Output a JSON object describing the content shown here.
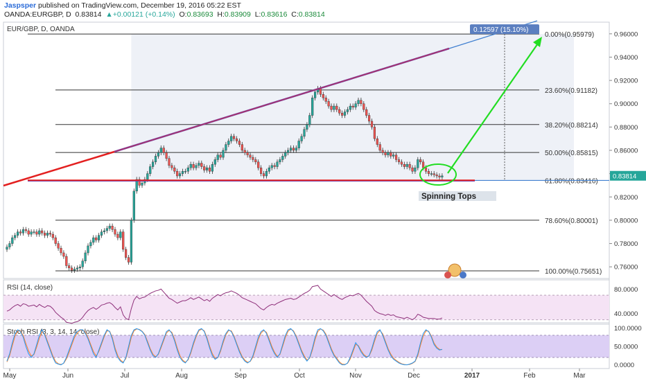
{
  "header": {
    "author": "Jaspsper",
    "published": "published on TradingView.com, December 19, 2016 05:22 EST",
    "symbol": "OANDA:EURGBP, D",
    "last": "0.83814",
    "change": "+0.00121 (+0.14%)",
    "open_label": "O:",
    "open": "0.83693",
    "high_label": "H:",
    "high": "0.83909",
    "low_label": "L:",
    "low": "0.83616",
    "close_label": "C:",
    "close": "0.83814"
  },
  "colors": {
    "up_candle": "#26a69a",
    "down_candle": "#ef5350",
    "wedge_line": "#7b3fa0",
    "red_line": "#e32020",
    "blue_line": "#3f7fd0",
    "green_arrow": "#22dd22",
    "rsi_line": "#8e2f7a",
    "stoch_k": "#2196f3",
    "stoch_d": "#ff7f27"
  },
  "chart_data": [
    {
      "type": "candlestick",
      "title": "EUR/GBP, D, OANDA",
      "ylim": [
        0.75,
        0.97
      ],
      "yticks": [
        "0.96000",
        "0.94000",
        "0.92000",
        "0.90000",
        "0.88000",
        "0.86000",
        "0.84000",
        "0.82000",
        "0.80000",
        "0.78000",
        "0.76000"
      ],
      "xticks": [
        "May",
        "Jun",
        "Jul",
        "Aug",
        "Sep",
        "Oct",
        "Nov",
        "Dec",
        "2017",
        "Feb",
        "Mar"
      ],
      "last_price_label": "0.83814",
      "fib_levels": [
        {
          "label": "0.00%(0.95979)",
          "value": 0.95979
        },
        {
          "label": "23.60%(0.91182)",
          "value": 0.91182
        },
        {
          "label": "38.20%(0.88214)",
          "value": 0.88214
        },
        {
          "label": "50.00%(0.85815)",
          "value": 0.85815
        },
        {
          "label": "61.80%(0.83416)",
          "value": 0.83416
        },
        {
          "label": "78.60%(0.80001)",
          "value": 0.80001
        },
        {
          "label": "100.00%(0.75651)",
          "value": 0.75651
        }
      ],
      "measure_label": "0.12597 (15.10%)",
      "annotation": "Spinning Tops",
      "closes": [
        0.777,
        0.78,
        0.785,
        0.787,
        0.79,
        0.789,
        0.792,
        0.791,
        0.788,
        0.79,
        0.79,
        0.788,
        0.791,
        0.789,
        0.787,
        0.789,
        0.788,
        0.785,
        0.78,
        0.776,
        0.772,
        0.769,
        0.761,
        0.759,
        0.757,
        0.758,
        0.759,
        0.76,
        0.765,
        0.772,
        0.778,
        0.781,
        0.785,
        0.783,
        0.787,
        0.79,
        0.791,
        0.793,
        0.795,
        0.792,
        0.788,
        0.785,
        0.79,
        0.775,
        0.768,
        0.764,
        0.8,
        0.825,
        0.835,
        0.83,
        0.832,
        0.835,
        0.84,
        0.846,
        0.85,
        0.855,
        0.858,
        0.862,
        0.858,
        0.853,
        0.847,
        0.845,
        0.842,
        0.838,
        0.84,
        0.842,
        0.842,
        0.845,
        0.848,
        0.845,
        0.847,
        0.849,
        0.846,
        0.843,
        0.845,
        0.842,
        0.848,
        0.852,
        0.856,
        0.854,
        0.86,
        0.865,
        0.868,
        0.872,
        0.87,
        0.868,
        0.865,
        0.86,
        0.858,
        0.856,
        0.854,
        0.852,
        0.85,
        0.845,
        0.84,
        0.838,
        0.842,
        0.845,
        0.847,
        0.846,
        0.85,
        0.852,
        0.855,
        0.858,
        0.86,
        0.862,
        0.86,
        0.862,
        0.868,
        0.872,
        0.878,
        0.882,
        0.89,
        0.905,
        0.91,
        0.913,
        0.908,
        0.905,
        0.902,
        0.898,
        0.895,
        0.898,
        0.895,
        0.892,
        0.89,
        0.893,
        0.895,
        0.898,
        0.897,
        0.9,
        0.903,
        0.9,
        0.895,
        0.89,
        0.885,
        0.88,
        0.87,
        0.865,
        0.86,
        0.858,
        0.856,
        0.858,
        0.855,
        0.856,
        0.852,
        0.85,
        0.848,
        0.846,
        0.848,
        0.845,
        0.842,
        0.845,
        0.852,
        0.85,
        0.845,
        0.842,
        0.84,
        0.84,
        0.839,
        0.838,
        0.837,
        0.8381
      ],
      "rsi": {
        "title": "RSI (14, close)",
        "ylim": [
          25,
          95
        ],
        "ticks": [
          "80.0000",
          "40.0000"
        ],
        "levels": [
          70,
          30
        ],
        "values": [
          44,
          46,
          50,
          53,
          55,
          52,
          56,
          55,
          52,
          53,
          54,
          51,
          55,
          52,
          50,
          53,
          52,
          48,
          42,
          38,
          34,
          31,
          26,
          25,
          24,
          26,
          27,
          29,
          34,
          40,
          45,
          48,
          50,
          47,
          50,
          54,
          55,
          57,
          58,
          55,
          50,
          46,
          51,
          38,
          32,
          30,
          48,
          62,
          68,
          64,
          66,
          67,
          70,
          73,
          75,
          77,
          78,
          80,
          75,
          70,
          65,
          63,
          60,
          57,
          59,
          61,
          61,
          63,
          66,
          63,
          65,
          67,
          64,
          61,
          63,
          60,
          65,
          68,
          71,
          69,
          72,
          74,
          75,
          77,
          75,
          73,
          70,
          66,
          64,
          62,
          60,
          58,
          56,
          52,
          48,
          46,
          50,
          53,
          55,
          54,
          57,
          59,
          61,
          63,
          64,
          65,
          63,
          64,
          67,
          70,
          73,
          75,
          78,
          84,
          85,
          86,
          80,
          77,
          74,
          71,
          68,
          71,
          68,
          65,
          63,
          66,
          68,
          70,
          69,
          71,
          73,
          70,
          65,
          60,
          56,
          52,
          45,
          42,
          40,
          39,
          37,
          39,
          37,
          38,
          35,
          34,
          33,
          32,
          34,
          32,
          30,
          33,
          39,
          37,
          34,
          33,
          32,
          32,
          32,
          31,
          31,
          33
        ]
      },
      "stoch_rsi": {
        "title": "Stoch RSI (3, 3, 14, 14, close)",
        "ylim": [
          -10,
          110
        ],
        "ticks": [
          "100.0000",
          "50.0000",
          "0.0000"
        ],
        "levels": [
          80,
          20
        ],
        "k": [
          10,
          30,
          60,
          85,
          95,
          90,
          75,
          50,
          30,
          20,
          30,
          55,
          80,
          95,
          80,
          60,
          40,
          20,
          5,
          2,
          0,
          5,
          20,
          40,
          60,
          80,
          90,
          95,
          95,
          85,
          70,
          50,
          30,
          20,
          40,
          60,
          80,
          95,
          90,
          70,
          40,
          20,
          10,
          5,
          20,
          50,
          80,
          95,
          98,
          95,
          90,
          80,
          60,
          40,
          25,
          20,
          30,
          50,
          70,
          90,
          95,
          85,
          65,
          40,
          20,
          10,
          5,
          15,
          35,
          60,
          80,
          95,
          98,
          90,
          70,
          45,
          25,
          15,
          20,
          40,
          65,
          85,
          95,
          90,
          75,
          55,
          35,
          20,
          10,
          5,
          10,
          25,
          50,
          75,
          90,
          95,
          85,
          65,
          45,
          30,
          20,
          30,
          55,
          80,
          95,
          98,
          90,
          75,
          55,
          35,
          20,
          10,
          20,
          45,
          75,
          95,
          98,
          92,
          80,
          60,
          40,
          25,
          15,
          5,
          0,
          0,
          5,
          20,
          40,
          60,
          50,
          35,
          25,
          20,
          25,
          45,
          70,
          90,
          95,
          80,
          60,
          40,
          25,
          15,
          10,
          5,
          2,
          0,
          0,
          2,
          5,
          10,
          30,
          60,
          85,
          95,
          90,
          75,
          55,
          45,
          40,
          42
        ],
        "d": [
          8,
          25,
          52,
          78,
          92,
          92,
          80,
          58,
          38,
          24,
          28,
          48,
          72,
          90,
          84,
          64,
          44,
          24,
          9,
          3,
          1,
          4,
          16,
          34,
          54,
          74,
          86,
          93,
          95,
          88,
          74,
          55,
          36,
          24,
          36,
          56,
          76,
          92,
          91,
          74,
          46,
          25,
          13,
          7,
          17,
          44,
          74,
          92,
          97,
          96,
          91,
          82,
          64,
          44,
          29,
          22,
          28,
          46,
          66,
          86,
          93,
          88,
          70,
          46,
          25,
          13,
          7,
          13,
          31,
          55,
          76,
          92,
          97,
          92,
          74,
          50,
          30,
          18,
          19,
          36,
          60,
          81,
          93,
          92,
          78,
          58,
          39,
          23,
          13,
          7,
          9,
          21,
          44,
          69,
          86,
          93,
          88,
          70,
          50,
          34,
          23,
          28,
          50,
          74,
          91,
          97,
          92,
          78,
          59,
          39,
          24,
          13,
          18,
          40,
          68,
          90,
          97,
          94,
          83,
          64,
          44,
          28,
          18,
          8,
          2,
          1,
          4,
          16,
          35,
          55,
          52,
          39,
          28,
          22,
          24,
          40,
          64,
          85,
          93,
          84,
          64,
          44,
          29,
          18,
          12,
          7,
          3,
          1,
          0,
          1,
          4,
          9,
          25,
          53,
          78,
          92,
          91,
          78,
          59,
          48,
          42,
          41
        ]
      }
    }
  ]
}
